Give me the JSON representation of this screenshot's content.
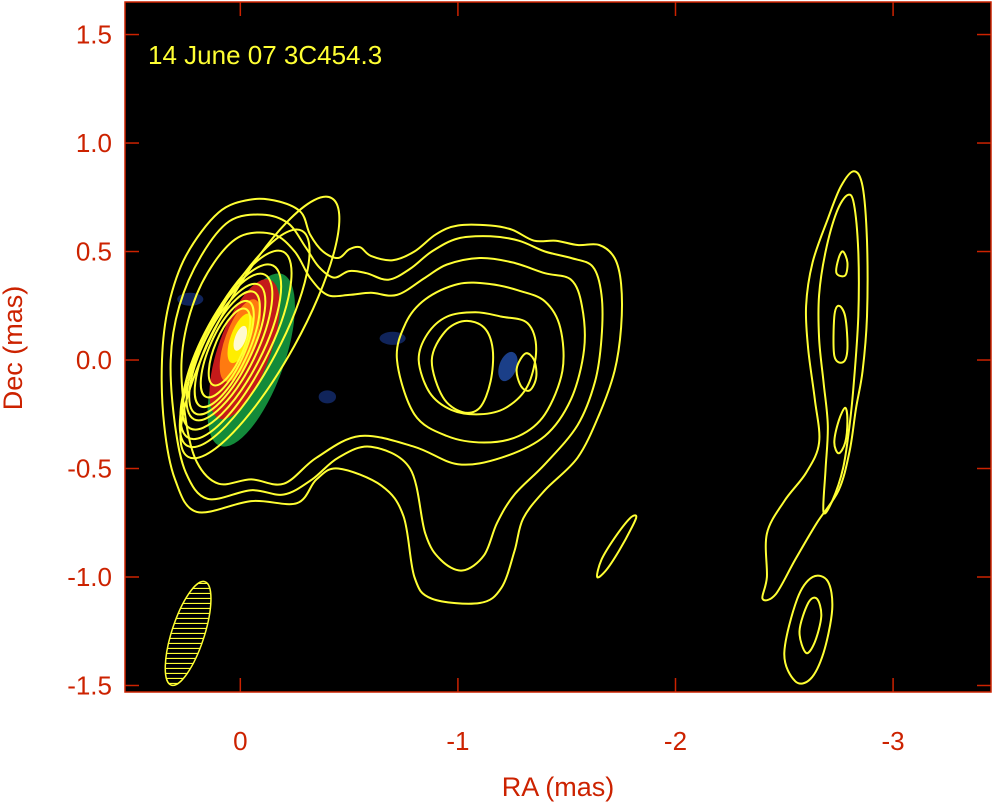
{
  "chart_data": {
    "type": "contour",
    "annotation": "14 June 07  3C454.3",
    "xlabel": "RA (mas)",
    "ylabel": "Dec (mas)",
    "xlim": [
      0.53,
      -3.45
    ],
    "ylim": [
      -1.53,
      1.65
    ],
    "x_ticks": [
      0,
      -1,
      -2,
      -3
    ],
    "x_tick_labels": [
      "0",
      "-1",
      "-2",
      "-3"
    ],
    "y_ticks": [
      1.5,
      1.0,
      0.5,
      0.0,
      -0.5,
      -1.0,
      -1.5
    ],
    "y_tick_labels": [
      "1.5",
      "1.0",
      "0.5",
      "0.0",
      "-0.5",
      "-1.0",
      "-1.5"
    ],
    "grid": false,
    "background_color": "#000000",
    "contour_color": "#ffff33",
    "frame_color": "#cc2200",
    "label_color": "#cc2200",
    "annotation_color": "#ffff33",
    "core_ellipses": [
      {
        "ra": -0.09,
        "dec": 0.15,
        "a": 0.68,
        "b": 0.18,
        "angle_deg": -61
      },
      {
        "ra": -0.02,
        "dec": 0.1,
        "a": 0.56,
        "b": 0.16,
        "angle_deg": -62
      },
      {
        "ra": 0.02,
        "dec": 0.07,
        "a": 0.48,
        "b": 0.15,
        "angle_deg": -63
      },
      {
        "ra": 0.04,
        "dec": 0.06,
        "a": 0.42,
        "b": 0.14,
        "angle_deg": -63
      },
      {
        "ra": 0.05,
        "dec": 0.06,
        "a": 0.37,
        "b": 0.125,
        "angle_deg": -64
      },
      {
        "ra": 0.06,
        "dec": 0.05,
        "a": 0.33,
        "b": 0.11,
        "angle_deg": -64
      },
      {
        "ra": 0.06,
        "dec": 0.05,
        "a": 0.29,
        "b": 0.095,
        "angle_deg": -65
      },
      {
        "ra": 0.06,
        "dec": 0.05,
        "a": 0.24,
        "b": 0.08,
        "angle_deg": -66
      },
      {
        "ra": 0.05,
        "dec": 0.06,
        "a": 0.19,
        "b": 0.065,
        "angle_deg": -67
      }
    ],
    "contours": [
      [
        [
          0.2,
          -0.7
        ],
        [
          -0.05,
          -0.65
        ],
        [
          -0.26,
          -0.66
        ],
        [
          -0.35,
          -0.55
        ],
        [
          -0.45,
          -0.5
        ],
        [
          -0.65,
          -0.58
        ],
        [
          -0.75,
          -0.72
        ],
        [
          -0.8,
          -1.0
        ],
        [
          -0.88,
          -1.1
        ],
        [
          -1.1,
          -1.12
        ],
        [
          -1.2,
          -1.05
        ],
        [
          -1.26,
          -0.88
        ],
        [
          -1.3,
          -0.73
        ],
        [
          -1.4,
          -0.6
        ],
        [
          -1.55,
          -0.45
        ],
        [
          -1.65,
          -0.25
        ],
        [
          -1.72,
          -0.05
        ],
        [
          -1.75,
          0.15
        ],
        [
          -1.75,
          0.35
        ],
        [
          -1.72,
          0.47
        ],
        [
          -1.65,
          0.53
        ],
        [
          -1.55,
          0.53
        ],
        [
          -1.45,
          0.55
        ],
        [
          -1.35,
          0.55
        ],
        [
          -1.25,
          0.6
        ],
        [
          -1.15,
          0.62
        ],
        [
          -1.0,
          0.62
        ],
        [
          -0.9,
          0.58
        ],
        [
          -0.8,
          0.5
        ],
        [
          -0.7,
          0.46
        ],
        [
          -0.6,
          0.48
        ],
        [
          -0.55,
          0.52
        ],
        [
          -0.5,
          0.51
        ],
        [
          -0.45,
          0.47
        ],
        [
          -0.38,
          0.5
        ],
        [
          -0.32,
          0.58
        ],
        [
          -0.28,
          0.68
        ],
        [
          -0.18,
          0.73
        ],
        [
          -0.05,
          0.74
        ],
        [
          0.1,
          0.68
        ],
        [
          0.25,
          0.48
        ],
        [
          0.33,
          0.25
        ],
        [
          0.36,
          0.0
        ],
        [
          0.35,
          -0.3
        ],
        [
          0.3,
          -0.55
        ],
        [
          0.2,
          -0.7
        ]
      ],
      [
        [
          0.15,
          -0.64
        ],
        [
          -0.05,
          -0.6
        ],
        [
          -0.2,
          -0.62
        ],
        [
          -0.33,
          -0.55
        ],
        [
          -0.45,
          -0.45
        ],
        [
          -0.6,
          -0.4
        ],
        [
          -0.78,
          -0.5
        ],
        [
          -0.85,
          -0.8
        ],
        [
          -0.92,
          -0.92
        ],
        [
          -1.02,
          -0.97
        ],
        [
          -1.12,
          -0.9
        ],
        [
          -1.18,
          -0.75
        ],
        [
          -1.26,
          -0.62
        ],
        [
          -1.4,
          -0.48
        ],
        [
          -1.55,
          -0.3
        ],
        [
          -1.63,
          -0.1
        ],
        [
          -1.66,
          0.1
        ],
        [
          -1.66,
          0.3
        ],
        [
          -1.62,
          0.43
        ],
        [
          -1.52,
          0.47
        ],
        [
          -1.4,
          0.5
        ],
        [
          -1.28,
          0.55
        ],
        [
          -1.15,
          0.57
        ],
        [
          -1.0,
          0.56
        ],
        [
          -0.88,
          0.5
        ],
        [
          -0.78,
          0.42
        ],
        [
          -0.68,
          0.37
        ],
        [
          -0.58,
          0.4
        ],
        [
          -0.5,
          0.41
        ],
        [
          -0.43,
          0.38
        ],
        [
          -0.36,
          0.43
        ],
        [
          -0.3,
          0.52
        ],
        [
          -0.22,
          0.63
        ],
        [
          -0.1,
          0.67
        ],
        [
          0.05,
          0.64
        ],
        [
          0.18,
          0.48
        ],
        [
          0.28,
          0.25
        ],
        [
          0.32,
          0.0
        ],
        [
          0.3,
          -0.3
        ],
        [
          0.25,
          -0.52
        ],
        [
          0.15,
          -0.64
        ]
      ],
      [
        [
          0.1,
          -0.57
        ],
        [
          -0.05,
          -0.55
        ],
        [
          -0.2,
          -0.57
        ],
        [
          -0.35,
          -0.45
        ],
        [
          -0.55,
          -0.35
        ],
        [
          -0.8,
          -0.4
        ],
        [
          -1.0,
          -0.48
        ],
        [
          -1.2,
          -0.45
        ],
        [
          -1.4,
          -0.35
        ],
        [
          -1.52,
          -0.18
        ],
        [
          -1.58,
          0.05
        ],
        [
          -1.57,
          0.25
        ],
        [
          -1.52,
          0.37
        ],
        [
          -1.4,
          0.4
        ],
        [
          -1.25,
          0.45
        ],
        [
          -1.1,
          0.47
        ],
        [
          -0.95,
          0.44
        ],
        [
          -0.85,
          0.38
        ],
        [
          -0.72,
          0.3
        ],
        [
          -0.6,
          0.31
        ],
        [
          -0.5,
          0.3
        ],
        [
          -0.4,
          0.3
        ],
        [
          -0.32,
          0.38
        ],
        [
          -0.25,
          0.5
        ],
        [
          -0.15,
          0.58
        ],
        [
          0.0,
          0.57
        ],
        [
          0.12,
          0.45
        ],
        [
          0.22,
          0.25
        ],
        [
          0.27,
          0.0
        ],
        [
          0.25,
          -0.28
        ],
        [
          0.2,
          -0.47
        ],
        [
          0.1,
          -0.57
        ]
      ],
      [
        [
          -0.72,
          0.0
        ],
        [
          -0.8,
          -0.25
        ],
        [
          -0.95,
          -0.35
        ],
        [
          -1.12,
          -0.38
        ],
        [
          -1.28,
          -0.35
        ],
        [
          -1.4,
          -0.25
        ],
        [
          -1.48,
          -0.05
        ],
        [
          -1.47,
          0.15
        ],
        [
          -1.4,
          0.27
        ],
        [
          -1.28,
          0.32
        ],
        [
          -1.15,
          0.35
        ],
        [
          -1.0,
          0.35
        ],
        [
          -0.85,
          0.28
        ],
        [
          -0.76,
          0.17
        ],
        [
          -0.72,
          0.0
        ]
      ],
      [
        [
          -0.82,
          0.0
        ],
        [
          -0.87,
          -0.15
        ],
        [
          -0.97,
          -0.23
        ],
        [
          -1.1,
          -0.25
        ],
        [
          -1.22,
          -0.22
        ],
        [
          -1.32,
          -0.12
        ],
        [
          -1.36,
          0.05
        ],
        [
          -1.32,
          0.17
        ],
        [
          -1.2,
          0.2
        ],
        [
          -1.08,
          0.22
        ],
        [
          -0.95,
          0.2
        ],
        [
          -0.86,
          0.12
        ],
        [
          -0.82,
          0.0
        ]
      ],
      [
        [
          -0.88,
          0.0
        ],
        [
          -0.93,
          -0.17
        ],
        [
          -1.02,
          -0.24
        ],
        [
          -1.1,
          -0.22
        ],
        [
          -1.15,
          -0.1
        ],
        [
          -1.16,
          0.05
        ],
        [
          -1.12,
          0.15
        ],
        [
          -1.03,
          0.18
        ],
        [
          -0.94,
          0.13
        ],
        [
          -0.88,
          0.0
        ]
      ],
      [
        [
          -1.27,
          -0.04
        ],
        [
          -1.29,
          -0.12
        ],
        [
          -1.33,
          -0.14
        ],
        [
          -1.36,
          -0.08
        ],
        [
          -1.35,
          0.0
        ],
        [
          -1.31,
          0.03
        ],
        [
          -1.27,
          -0.04
        ]
      ],
      [
        [
          -1.64,
          -1.0
        ],
        [
          -1.68,
          -0.97
        ],
        [
          -1.74,
          -0.88
        ],
        [
          -1.8,
          -0.77
        ],
        [
          -1.82,
          -0.72
        ],
        [
          -1.79,
          -0.73
        ],
        [
          -1.72,
          -0.82
        ],
        [
          -1.66,
          -0.92
        ],
        [
          -1.64,
          -1.0
        ]
      ],
      [
        [
          -2.42,
          -1.0
        ],
        [
          -2.4,
          -1.1
        ],
        [
          -2.46,
          -1.08
        ],
        [
          -2.55,
          -0.92
        ],
        [
          -2.65,
          -0.75
        ],
        [
          -2.75,
          -0.6
        ],
        [
          -2.8,
          -0.42
        ],
        [
          -2.83,
          -0.22
        ],
        [
          -2.86,
          -0.05
        ],
        [
          -2.88,
          0.2
        ],
        [
          -2.88,
          0.55
        ],
        [
          -2.86,
          0.8
        ],
        [
          -2.82,
          0.87
        ],
        [
          -2.76,
          0.8
        ],
        [
          -2.7,
          0.65
        ],
        [
          -2.63,
          0.45
        ],
        [
          -2.6,
          0.25
        ],
        [
          -2.61,
          0.05
        ],
        [
          -2.64,
          -0.18
        ],
        [
          -2.66,
          -0.38
        ],
        [
          -2.6,
          -0.52
        ],
        [
          -2.5,
          -0.65
        ],
        [
          -2.42,
          -0.8
        ],
        [
          -2.42,
          -1.0
        ]
      ],
      [
        [
          -2.68,
          -0.7
        ],
        [
          -2.72,
          -0.65
        ],
        [
          -2.77,
          -0.5
        ],
        [
          -2.8,
          -0.3
        ],
        [
          -2.82,
          -0.1
        ],
        [
          -2.84,
          0.2
        ],
        [
          -2.84,
          0.5
        ],
        [
          -2.82,
          0.72
        ],
        [
          -2.79,
          0.76
        ],
        [
          -2.74,
          0.68
        ],
        [
          -2.69,
          0.5
        ],
        [
          -2.66,
          0.3
        ],
        [
          -2.66,
          0.1
        ],
        [
          -2.68,
          -0.1
        ],
        [
          -2.7,
          -0.3
        ],
        [
          -2.69,
          -0.5
        ],
        [
          -2.68,
          -0.7
        ]
      ],
      [
        [
          -2.73,
          0.02
        ],
        [
          -2.73,
          0.2
        ],
        [
          -2.75,
          0.25
        ],
        [
          -2.78,
          0.2
        ],
        [
          -2.79,
          0.05
        ],
        [
          -2.77,
          -0.01
        ],
        [
          -2.73,
          0.02
        ]
      ],
      [
        [
          -2.74,
          0.4
        ],
        [
          -2.75,
          0.47
        ],
        [
          -2.77,
          0.5
        ],
        [
          -2.79,
          0.45
        ],
        [
          -2.78,
          0.39
        ],
        [
          -2.74,
          0.4
        ]
      ],
      [
        [
          -2.73,
          -0.38
        ],
        [
          -2.75,
          -0.28
        ],
        [
          -2.78,
          -0.22
        ],
        [
          -2.79,
          -0.28
        ],
        [
          -2.78,
          -0.38
        ],
        [
          -2.75,
          -0.43
        ],
        [
          -2.73,
          -0.38
        ]
      ],
      [
        [
          -2.5,
          -1.35
        ],
        [
          -2.55,
          -1.48
        ],
        [
          -2.62,
          -1.47
        ],
        [
          -2.68,
          -1.35
        ],
        [
          -2.72,
          -1.15
        ],
        [
          -2.7,
          -1.02
        ],
        [
          -2.63,
          -1.0
        ],
        [
          -2.56,
          -1.1
        ],
        [
          -2.5,
          -1.35
        ]
      ],
      [
        [
          -2.57,
          -1.25
        ],
        [
          -2.6,
          -1.35
        ],
        [
          -2.64,
          -1.3
        ],
        [
          -2.67,
          -1.18
        ],
        [
          -2.65,
          -1.1
        ],
        [
          -2.61,
          -1.12
        ],
        [
          -2.57,
          -1.25
        ]
      ]
    ],
    "beam": {
      "ra": 0.24,
      "dec": -1.26,
      "a": 0.25,
      "b": 0.075,
      "angle_deg": -72
    },
    "intensity_blobs": [
      {
        "ra": -0.05,
        "dec": 0.0,
        "a": 0.42,
        "b": 0.15,
        "angle_deg": -70,
        "color": "#138a3a"
      },
      {
        "ra": -0.02,
        "dec": 0.05,
        "a": 0.34,
        "b": 0.12,
        "angle_deg": -70,
        "color": "#c41a1a"
      },
      {
        "ra": 0.0,
        "dec": 0.09,
        "a": 0.2,
        "b": 0.07,
        "angle_deg": -70,
        "color": "#ff7a10"
      },
      {
        "ra": 0.0,
        "dec": 0.1,
        "a": 0.12,
        "b": 0.045,
        "angle_deg": -70,
        "color": "#ffee00"
      },
      {
        "ra": 0.0,
        "dec": 0.1,
        "a": 0.06,
        "b": 0.025,
        "angle_deg": -70,
        "color": "#fffad0"
      },
      {
        "ra": 0.23,
        "dec": 0.28,
        "a": 0.06,
        "b": 0.03,
        "angle_deg": 0,
        "color": "#10245a"
      },
      {
        "ra": -0.7,
        "dec": 0.1,
        "a": 0.06,
        "b": 0.03,
        "angle_deg": 0,
        "color": "#10245a"
      },
      {
        "ra": -1.23,
        "dec": -0.03,
        "a": 0.07,
        "b": 0.04,
        "angle_deg": -70,
        "color": "#1b3f88"
      },
      {
        "ra": -0.4,
        "dec": -0.17,
        "a": 0.04,
        "b": 0.03,
        "angle_deg": 0,
        "color": "#10245a"
      }
    ]
  }
}
